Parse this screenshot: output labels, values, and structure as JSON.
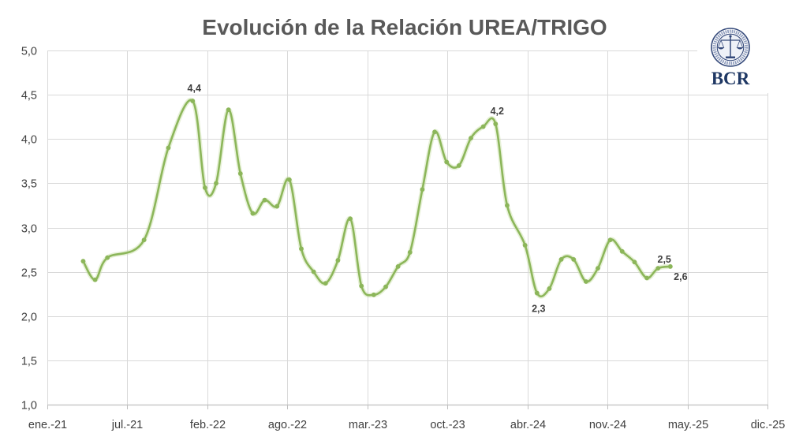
{
  "chart_data": {
    "type": "line",
    "title": "Evolución de la Relación UREA/TRIGO",
    "x_ticks": [
      "ene.-21",
      "jul.-21",
      "feb.-22",
      "ago.-22",
      "mar.-23",
      "oct.-23",
      "abr.-24",
      "nov.-24",
      "may.-25",
      "dic.-25"
    ],
    "y_ticks": [
      "1,0",
      "1,5",
      "2,0",
      "2,5",
      "3,0",
      "3,5",
      "4,0",
      "4,5",
      "5,0"
    ],
    "xlim": [
      "2021-01-01",
      "2025-12-15"
    ],
    "ylim": [
      1,
      5
    ],
    "grid": true,
    "legend": "none",
    "smooth": true,
    "markers": true,
    "colors": {
      "line": "#8cb65a",
      "glow": "#c9e0a9",
      "grid": "#d9d9d9",
      "axis": "#bfbfbf",
      "text": "#404040",
      "title": "#595959"
    },
    "series": [
      {
        "x": [
          "2021-04-01",
          "2021-05-01",
          "2021-06-01",
          "2021-09-01",
          "2021-11-01",
          "2022-01-01",
          "2022-02-01",
          "2022-03-01",
          "2022-04-01",
          "2022-05-01",
          "2022-06-01",
          "2022-07-01",
          "2022-08-01",
          "2022-09-01",
          "2022-10-01",
          "2022-11-01",
          "2022-12-01",
          "2023-01-01",
          "2023-02-01",
          "2023-03-01",
          "2023-04-01",
          "2023-05-01",
          "2023-06-01",
          "2023-07-01",
          "2023-08-01",
          "2023-09-01",
          "2023-10-01",
          "2023-11-01",
          "2023-12-01",
          "2024-01-01",
          "2024-02-01",
          "2024-03-01",
          "2024-04-15",
          "2024-05-15",
          "2024-06-15",
          "2024-07-15",
          "2024-08-15",
          "2024-09-15",
          "2024-10-15",
          "2024-11-15",
          "2024-12-15",
          "2025-01-15",
          "2025-02-15",
          "2025-03-15",
          "2025-04-15"
        ],
        "values": [
          2.62,
          2.41,
          2.66,
          2.86,
          3.9,
          4.43,
          3.45,
          3.5,
          4.33,
          3.61,
          3.16,
          3.31,
          3.24,
          3.54,
          2.76,
          2.5,
          2.37,
          2.63,
          3.1,
          2.34,
          2.24,
          2.33,
          2.56,
          2.72,
          3.43,
          4.08,
          3.74,
          3.7,
          4.01,
          4.14,
          4.17,
          3.25,
          2.8,
          2.26,
          2.31,
          2.64,
          2.64,
          2.39,
          2.54,
          2.86,
          2.73,
          2.61,
          2.43,
          2.54,
          2.56
        ]
      }
    ],
    "data_labels": [
      {
        "index": 5,
        "text": "4,4",
        "position": "above"
      },
      {
        "index": 30,
        "text": "4,2",
        "position": "above"
      },
      {
        "index": 33,
        "text": "2,3",
        "position": "below"
      },
      {
        "index": 43,
        "text": "2,5",
        "position": "above-right"
      },
      {
        "index": 44,
        "text": "2,6",
        "position": "below-right"
      }
    ]
  },
  "logo": {
    "text": "BCR",
    "color": "#1f3864",
    "icon": "bcr-seal-icon"
  }
}
